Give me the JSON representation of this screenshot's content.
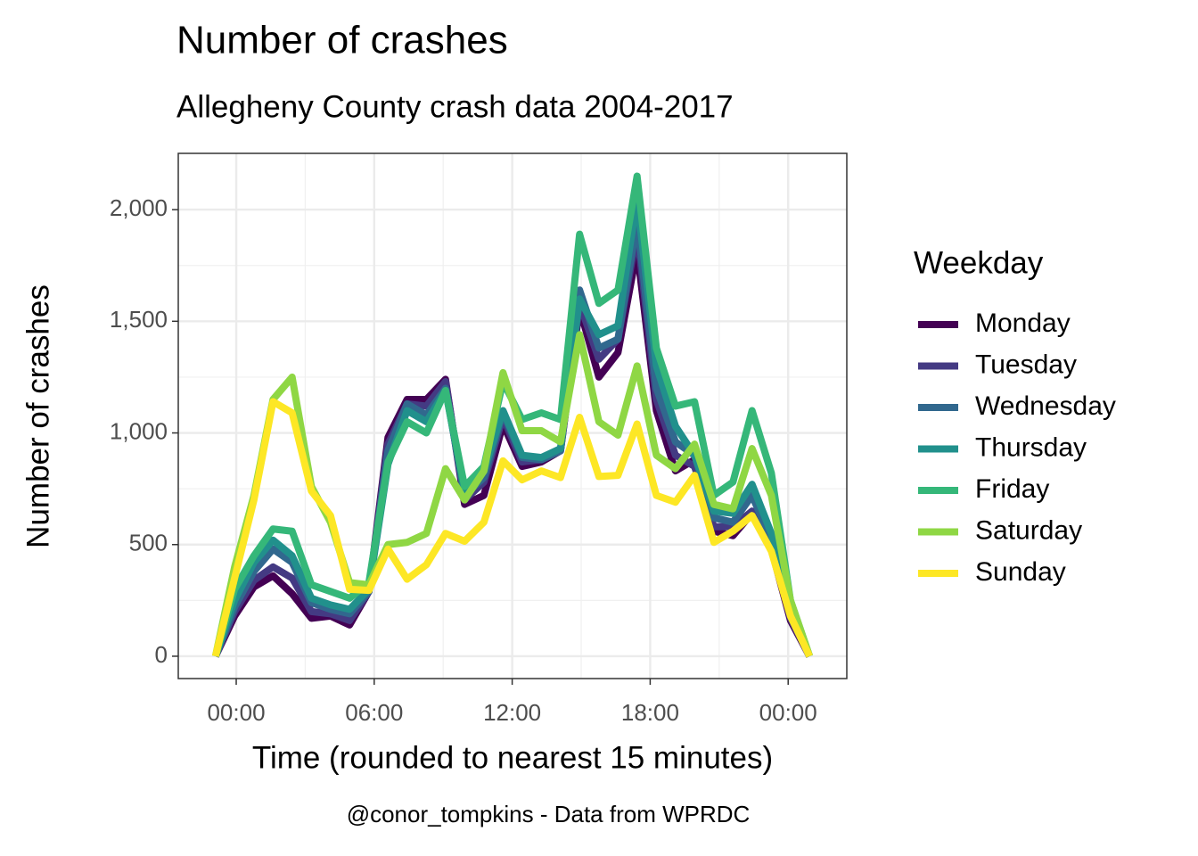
{
  "chart_data": {
    "type": "line",
    "title": "Number of crashes",
    "subtitle": "Allegheny County crash data 2004-2017",
    "x_label": "Time (rounded to nearest 15 minutes)",
    "y_label": "Number of crashes",
    "caption": "@conor_tompkins - Data from WPRDC",
    "legend_title": "Weekday",
    "legend": "right",
    "grid": true,
    "x": [
      -0.9,
      -0.07,
      0.77,
      1.6,
      2.43,
      3.27,
      4.1,
      4.93,
      5.77,
      6.6,
      7.43,
      8.27,
      9.1,
      9.93,
      10.77,
      11.6,
      12.43,
      13.27,
      14.1,
      14.93,
      15.77,
      16.6,
      17.43,
      18.27,
      19.1,
      19.93,
      20.77,
      21.6,
      22.43,
      23.27,
      24.1,
      24.93
    ],
    "xlim": [
      -2.52,
      26.55
    ],
    "xticks": [
      {
        "value": 0,
        "label": "00:00"
      },
      {
        "value": 6,
        "label": "06:00"
      },
      {
        "value": 12,
        "label": "12:00"
      },
      {
        "value": 18,
        "label": "18:00"
      },
      {
        "value": 24,
        "label": "00:00"
      }
    ],
    "ylim": [
      -100,
      2252
    ],
    "yticks": [
      0,
      500,
      {
        "value": 1000,
        "label": "1,000"
      },
      {
        "value": 1500,
        "label": "1,500"
      },
      {
        "value": 2000,
        "label": "2,000"
      }
    ],
    "series": [
      {
        "name": "Monday",
        "color": "#440154",
        "values": [
          0,
          180,
          310,
          360,
          280,
          170,
          180,
          140,
          290,
          980,
          1150,
          1150,
          1240,
          680,
          720,
          1040,
          850,
          870,
          920,
          1560,
          1250,
          1360,
          1820,
          1100,
          830,
          880,
          560,
          540,
          640,
          480,
          160,
          0
        ]
      },
      {
        "name": "Tuesday",
        "color": "#443A83",
        "values": [
          0,
          200,
          340,
          400,
          350,
          200,
          190,
          160,
          290,
          950,
          1130,
          1120,
          1230,
          700,
          780,
          1070,
          870,
          880,
          920,
          1580,
          1330,
          1420,
          1900,
          1150,
          900,
          850,
          580,
          580,
          650,
          500,
          170,
          0
        ]
      },
      {
        "name": "Wednesday",
        "color": "#31688E",
        "values": [
          0,
          220,
          380,
          480,
          420,
          240,
          210,
          190,
          290,
          920,
          1130,
          1080,
          1200,
          720,
          800,
          1090,
          890,
          880,
          920,
          1640,
          1380,
          1420,
          1950,
          1200,
          960,
          900,
          620,
          600,
          720,
          520,
          180,
          0
        ]
      },
      {
        "name": "Thursday",
        "color": "#21908C",
        "values": [
          0,
          250,
          420,
          520,
          450,
          260,
          230,
          210,
          300,
          860,
          1100,
          1050,
          1190,
          740,
          830,
          1100,
          900,
          890,
          930,
          1600,
          1440,
          1480,
          2050,
          1300,
          1030,
          900,
          650,
          640,
          770,
          550,
          200,
          0
        ]
      },
      {
        "name": "Friday",
        "color": "#35B779",
        "values": [
          0,
          300,
          450,
          570,
          560,
          320,
          290,
          260,
          330,
          870,
          1050,
          1000,
          1190,
          760,
          850,
          1230,
          1060,
          1090,
          1060,
          1890,
          1580,
          1640,
          2150,
          1380,
          1120,
          1140,
          720,
          780,
          1100,
          820,
          250,
          0
        ]
      },
      {
        "name": "Saturday",
        "color": "#8FD744",
        "values": [
          0,
          400,
          720,
          1150,
          1250,
          760,
          600,
          330,
          320,
          500,
          510,
          550,
          840,
          700,
          830,
          1270,
          1010,
          1010,
          960,
          1440,
          1050,
          990,
          1300,
          900,
          840,
          950,
          680,
          660,
          930,
          720,
          250,
          0
        ]
      },
      {
        "name": "Sunday",
        "color": "#FDE725",
        "values": [
          0,
          350,
          700,
          1140,
          1090,
          740,
          630,
          300,
          295,
          480,
          345,
          410,
          550,
          515,
          600,
          875,
          790,
          830,
          800,
          1070,
          805,
          810,
          1040,
          720,
          690,
          810,
          510,
          560,
          630,
          470,
          180,
          0
        ]
      }
    ]
  }
}
